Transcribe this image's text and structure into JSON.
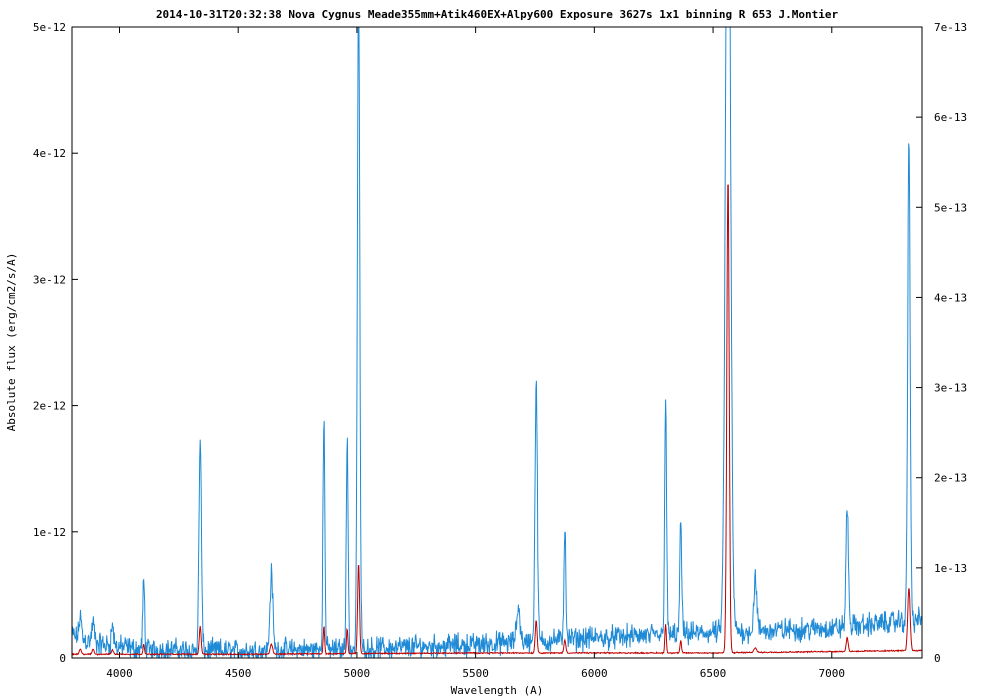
{
  "chart_data": {
    "type": "line",
    "title": "2014-10-31T20:32:38 Nova Cygnus Meade355mm+Atik460EX+Alpy600 Exposure 3627s 1x1 binning R 653 J.Montier",
    "xlabel": "Wavelength (A)",
    "ylabel": "Absolute flux (erg/cm2/s/A)",
    "xlim": [
      3800,
      7380
    ],
    "ylim_left": [
      0,
      5e-12
    ],
    "ylim_right": [
      0,
      7e-13
    ],
    "x_ticks": [
      "4000",
      "4500",
      "5000",
      "5500",
      "6000",
      "6500",
      "7000"
    ],
    "x_tick_values": [
      4000,
      4500,
      5000,
      5500,
      6000,
      6500,
      7000
    ],
    "y_ticks_left": [
      "0",
      "1e-12",
      "2e-12",
      "3e-12",
      "4e-12",
      "5e-12"
    ],
    "y_tick_values_left": [
      0,
      1e-12,
      2e-12,
      3e-12,
      4e-12,
      5e-12
    ],
    "y_ticks_right": [
      "0",
      "1e-13",
      "2e-13",
      "3e-13",
      "4e-13",
      "5e-13",
      "6e-13",
      "7e-13"
    ],
    "y_tick_values_right": [
      0,
      1e-13,
      2e-13,
      3e-13,
      4e-13,
      5e-13,
      6e-13,
      7e-13
    ],
    "grid": false,
    "legend": "none",
    "series": [
      {
        "axis": "right",
        "color": "#1f8ad6",
        "continuum": [
          [
            3800,
            2.5e-14
          ],
          [
            3900,
            1.6e-14
          ],
          [
            4100,
            9e-15
          ],
          [
            4500,
            8e-15
          ],
          [
            5000,
            1e-14
          ],
          [
            5500,
            1.5e-14
          ],
          [
            6000,
            2.2e-14
          ],
          [
            6500,
            2.8e-14
          ],
          [
            7000,
            3.3e-14
          ],
          [
            7380,
            4.3e-14
          ]
        ],
        "lines": [
          [
            3835,
            2.5e-14,
            5
          ],
          [
            3889,
            2.2e-14,
            5
          ],
          [
            3970,
            2.2e-14,
            5
          ],
          [
            4102,
            7.5e-14,
            4
          ],
          [
            4340,
            2.35e-13,
            5
          ],
          [
            4640,
            8.5e-14,
            6
          ],
          [
            4861,
            2.55e-13,
            4
          ],
          [
            4959,
            2.3e-13,
            4
          ],
          [
            5007,
            7.4e-13,
            5
          ],
          [
            5680,
            4e-14,
            7
          ],
          [
            5755,
            2.85e-13,
            5
          ],
          [
            5876,
            1.25e-13,
            4
          ],
          [
            6300,
            2.65e-13,
            4
          ],
          [
            6364,
            1.25e-13,
            4
          ],
          [
            6563,
            1e-12,
            10
          ],
          [
            6678,
            6e-14,
            6
          ],
          [
            7065,
            1.35e-13,
            5
          ],
          [
            7325,
            5.4e-13,
            5
          ]
        ],
        "noise": 8e-15
      },
      {
        "axis": "left",
        "color": "#c00000",
        "continuum": [
          [
            3800,
            3e-14
          ],
          [
            4500,
            3e-14
          ],
          [
            5500,
            4e-14
          ],
          [
            6500,
            4e-14
          ],
          [
            7380,
            6e-14
          ]
        ],
        "lines": [
          [
            3835,
            4e-14,
            4
          ],
          [
            3889,
            4e-14,
            4
          ],
          [
            3970,
            3.5e-14,
            4
          ],
          [
            4102,
            8e-14,
            3
          ],
          [
            4340,
            2.2e-13,
            4
          ],
          [
            4640,
            8e-14,
            5
          ],
          [
            4861,
            2.2e-13,
            3
          ],
          [
            4959,
            2e-13,
            3
          ],
          [
            5007,
            7.2e-13,
            4
          ],
          [
            5755,
            2.6e-13,
            4
          ],
          [
            5876,
            1e-13,
            4
          ],
          [
            6300,
            2.3e-13,
            3
          ],
          [
            6364,
            1e-13,
            3
          ],
          [
            6563,
            3.78e-12,
            5
          ],
          [
            6678,
            4e-14,
            5
          ],
          [
            7065,
            1.1e-13,
            4
          ],
          [
            7325,
            5e-13,
            5
          ]
        ],
        "noise": 3e-15
      }
    ]
  }
}
